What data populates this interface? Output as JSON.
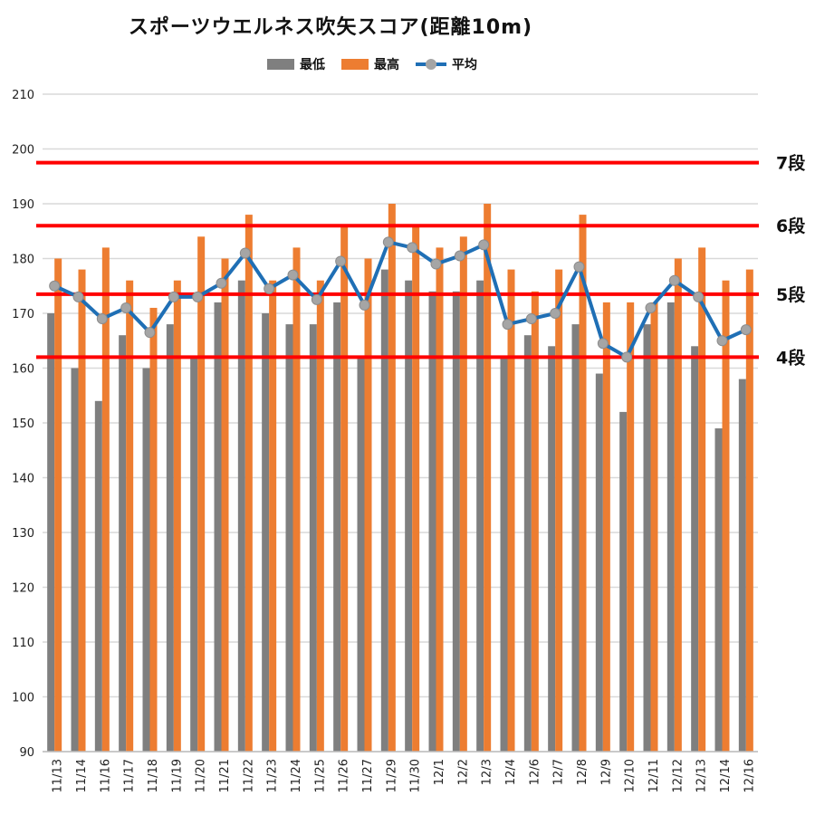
{
  "chart_data": {
    "type": "bar",
    "title": "スポーツウエルネス吹矢スコア(距離10m)",
    "categories": [
      "11/13",
      "11/14",
      "11/16",
      "11/17",
      "11/18",
      "11/19",
      "11/20",
      "11/21",
      "11/22",
      "11/23",
      "11/24",
      "11/25",
      "11/26",
      "11/27",
      "11/29",
      "11/30",
      "12/1",
      "12/2",
      "12/3",
      "12/4",
      "12/6",
      "12/7",
      "12/8",
      "12/9",
      "12/10",
      "12/11",
      "12/12",
      "12/13",
      "12/14",
      "12/16"
    ],
    "series": [
      {
        "name": "最低",
        "type": "bar",
        "color": "#7f7f7f",
        "values": [
          170,
          160,
          154,
          166,
          160,
          168,
          162,
          172,
          176,
          170,
          168,
          168,
          172,
          162,
          178,
          176,
          174,
          174,
          176,
          162,
          166,
          164,
          168,
          159,
          152,
          168,
          172,
          164,
          149,
          158
        ]
      },
      {
        "name": "最高",
        "type": "bar",
        "color": "#ed7d31",
        "values": [
          180,
          178,
          182,
          176,
          171,
          176,
          184,
          180,
          188,
          176,
          182,
          176,
          186,
          180,
          190,
          186,
          182,
          184,
          190,
          178,
          174,
          178,
          188,
          172,
          172,
          172,
          180,
          182,
          176,
          178
        ]
      },
      {
        "name": "平均",
        "type": "line",
        "color": "#1f6fb5",
        "marker_color": "#a5a5a5",
        "values": [
          175,
          173,
          169,
          171,
          166.5,
          173,
          173,
          175.5,
          181,
          174.5,
          177,
          172.5,
          179.5,
          171.5,
          183,
          182,
          179,
          180.5,
          182.5,
          168,
          169,
          170,
          178.5,
          164.5,
          162,
          171,
          176,
          173,
          165,
          167
        ]
      }
    ],
    "ylim": [
      90,
      210
    ],
    "yticks": [
      90,
      100,
      110,
      120,
      130,
      140,
      150,
      160,
      170,
      180,
      190,
      200,
      210
    ],
    "reference_lines": [
      {
        "label": "7段",
        "value": 197.5,
        "color": "#ff0000"
      },
      {
        "label": "6段",
        "value": 186,
        "color": "#ff0000"
      },
      {
        "label": "5段",
        "value": 173.5,
        "color": "#ff0000"
      },
      {
        "label": "4段",
        "value": 162,
        "color": "#ff0000"
      }
    ],
    "grid": true,
    "legend_position": "top"
  }
}
